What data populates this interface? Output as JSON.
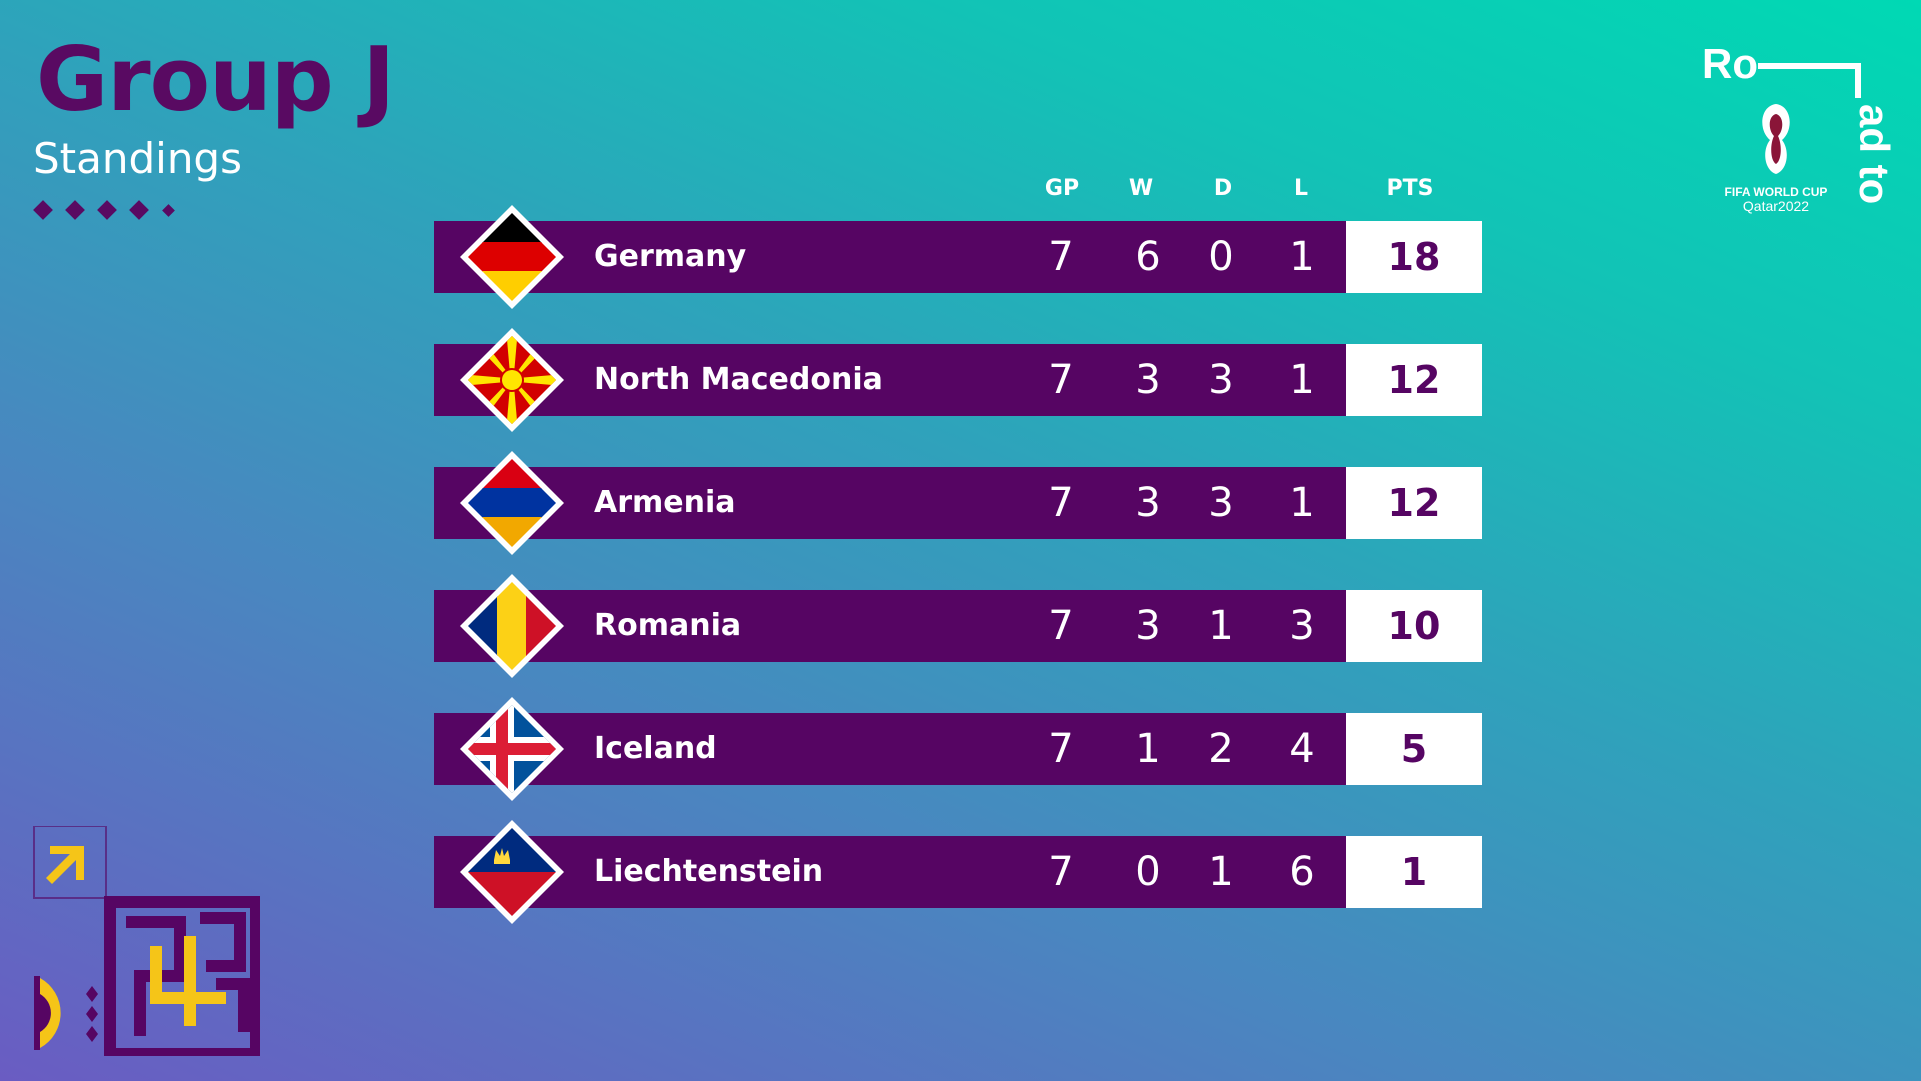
{
  "header": {
    "title": "Group J",
    "subtitle": "Standings"
  },
  "columns": {
    "gp": "GP",
    "w": "W",
    "d": "D",
    "l": "L",
    "pts": "PTS"
  },
  "teams": [
    {
      "name": "Germany",
      "gp": "7",
      "w": "6",
      "d": "0",
      "l": "1",
      "pts": "18",
      "flag": "germany-flag"
    },
    {
      "name": "North Macedonia",
      "gp": "7",
      "w": "3",
      "d": "3",
      "l": "1",
      "pts": "12",
      "flag": "north-macedonia-flag"
    },
    {
      "name": "Armenia",
      "gp": "7",
      "w": "3",
      "d": "3",
      "l": "1",
      "pts": "12",
      "flag": "armenia-flag"
    },
    {
      "name": "Romania",
      "gp": "7",
      "w": "3",
      "d": "1",
      "l": "3",
      "pts": "10",
      "flag": "romania-flag"
    },
    {
      "name": "Iceland",
      "gp": "7",
      "w": "1",
      "d": "2",
      "l": "4",
      "pts": "5",
      "flag": "iceland-flag"
    },
    {
      "name": "Liechtenstein",
      "gp": "7",
      "w": "0",
      "d": "1",
      "l": "6",
      "pts": "1",
      "flag": "liechtenstein-flag"
    }
  ],
  "logo": {
    "ro": "Ro",
    "ad_to": "ad to",
    "line1": "FIFA WORLD CUP",
    "line2": "Qatar2022"
  },
  "colors": {
    "primary": "#560563",
    "accent": "#f5c518",
    "teal": "#00d9b4",
    "text": "#ffffff"
  }
}
